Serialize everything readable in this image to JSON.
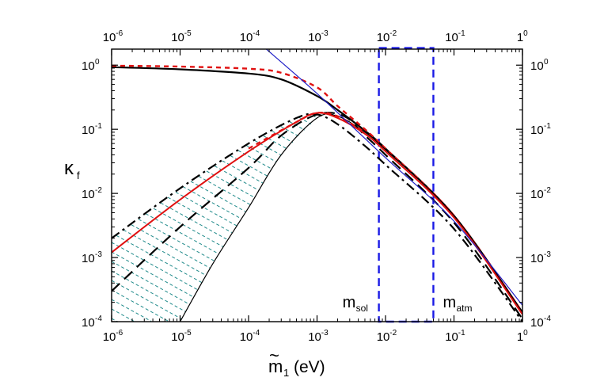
{
  "chart_data": {
    "type": "line",
    "title": "",
    "xlabel": {
      "symbol": "m",
      "tilde": "~",
      "sub": "1",
      "unit": "(eV)"
    },
    "ylabel": {
      "symbol": "κ",
      "sub": "f"
    },
    "xscale": "log",
    "yscale": "log",
    "xlim": [
      1e-06,
      1
    ],
    "ylim": [
      0.0001,
      2
    ],
    "x_ticks": [
      {
        "value": 1e-06,
        "base": "10",
        "exp": "-6"
      },
      {
        "value": 1e-05,
        "base": "10",
        "exp": "-5"
      },
      {
        "value": 0.0001,
        "base": "10",
        "exp": "-4"
      },
      {
        "value": 0.001,
        "base": "10",
        "exp": "-3"
      },
      {
        "value": 0.01,
        "base": "10",
        "exp": "-2"
      },
      {
        "value": 0.1,
        "base": "10",
        "exp": "-1"
      },
      {
        "value": 1,
        "base": "1",
        "exp": "0"
      }
    ],
    "y_ticks": [
      {
        "value": 0.0001,
        "base": "10",
        "exp": "-4"
      },
      {
        "value": 0.001,
        "base": "10",
        "exp": "-3"
      },
      {
        "value": 0.01,
        "base": "10",
        "exp": "-2"
      },
      {
        "value": 0.1,
        "base": "10",
        "exp": "-1"
      },
      {
        "value": 1,
        "base": "10",
        "exp": "0"
      }
    ],
    "band_label": "m_sol … m_atm",
    "band": {
      "x_range": [
        0.008,
        0.05
      ],
      "y_range": [
        0.0001,
        1.85
      ],
      "color": "#1a1ae6",
      "labels": [
        {
          "symbol": "m",
          "sub": "sol",
          "x": 0.008,
          "side": "left"
        },
        {
          "symbol": "m",
          "sub": "atm",
          "x": 0.05,
          "side": "right"
        }
      ]
    },
    "series": [
      {
        "style": "solid-thick",
        "color": "#000000",
        "width": 2.2,
        "dash": "",
        "points": [
          [
            1e-06,
            0.93
          ],
          [
            1e-05,
            0.86
          ],
          [
            0.0001,
            0.74
          ],
          [
            0.0003,
            0.6
          ],
          [
            0.001,
            0.33
          ],
          [
            0.002,
            0.2
          ],
          [
            0.005,
            0.095
          ],
          [
            0.01,
            0.05
          ],
          [
            0.1,
            0.0045
          ],
          [
            1,
            0.00014
          ]
        ]
      },
      {
        "style": "dashed",
        "color": "#e01010",
        "width": 2.4,
        "dash": "6,5",
        "points": [
          [
            1e-06,
            0.98
          ],
          [
            1e-05,
            0.95
          ],
          [
            0.0001,
            0.88
          ],
          [
            0.0003,
            0.76
          ],
          [
            0.001,
            0.45
          ],
          [
            0.002,
            0.23
          ],
          [
            0.005,
            0.1
          ],
          [
            0.01,
            0.05
          ],
          [
            0.1,
            0.0045
          ],
          [
            1,
            0.00014
          ]
        ]
      },
      {
        "style": "solid-thin",
        "color": "#000000",
        "width": 1.2,
        "dash": "",
        "points": [
          [
            1e-05,
            0.0001
          ],
          [
            3e-05,
            0.0008
          ],
          [
            0.0001,
            0.006
          ],
          [
            0.0003,
            0.04
          ],
          [
            0.001,
            0.15
          ],
          [
            0.002,
            0.16
          ],
          [
            0.005,
            0.09
          ],
          [
            0.01,
            0.048
          ],
          [
            0.1,
            0.0045
          ],
          [
            1,
            0.00014
          ]
        ]
      },
      {
        "style": "long-dash",
        "color": "#000000",
        "width": 2.2,
        "dash": "14,8",
        "points": [
          [
            1e-06,
            0.0003
          ],
          [
            1e-05,
            0.003
          ],
          [
            0.0001,
            0.025
          ],
          [
            0.0003,
            0.08
          ],
          [
            0.001,
            0.17
          ],
          [
            0.0025,
            0.16
          ],
          [
            0.005,
            0.08
          ],
          [
            0.01,
            0.04
          ],
          [
            0.1,
            0.0035
          ],
          [
            1,
            0.00011
          ]
        ]
      },
      {
        "style": "dash-dot",
        "color": "#000000",
        "width": 2.2,
        "dash": "12,5,3,5",
        "points": [
          [
            1e-06,
            0.002
          ],
          [
            1e-05,
            0.012
          ],
          [
            0.0001,
            0.06
          ],
          [
            0.0005,
            0.15
          ],
          [
            0.001,
            0.17
          ],
          [
            0.002,
            0.12
          ],
          [
            0.005,
            0.055
          ],
          [
            0.01,
            0.028
          ],
          [
            0.1,
            0.0028
          ],
          [
            1,
            0.0001
          ]
        ]
      },
      {
        "style": "solid-red",
        "color": "#e01010",
        "width": 2.0,
        "dash": "",
        "points": [
          [
            1e-06,
            0.0012
          ],
          [
            1e-05,
            0.008
          ],
          [
            0.0001,
            0.045
          ],
          [
            0.0005,
            0.13
          ],
          [
            0.001,
            0.18
          ],
          [
            0.002,
            0.15
          ],
          [
            0.005,
            0.085
          ],
          [
            0.01,
            0.045
          ],
          [
            0.1,
            0.0042
          ],
          [
            1,
            0.00013
          ]
        ]
      },
      {
        "style": "red-dashed-low",
        "color": "#e01010",
        "width": 2.2,
        "dash": "6,5",
        "points": [
          [
            0.0001,
            0.05
          ],
          [
            0.0005,
            0.13
          ],
          [
            0.001,
            0.18
          ],
          [
            0.002,
            0.16
          ],
          [
            0.005,
            0.09
          ]
        ]
      },
      {
        "style": "blue-thin",
        "color": "#2020c8",
        "width": 1.2,
        "dash": "",
        "points": [
          [
            0.00016,
            2.0
          ],
          [
            0.001,
            0.36
          ],
          [
            0.01,
            0.036
          ],
          [
            0.1,
            0.0037
          ],
          [
            1,
            0.00018
          ]
        ]
      }
    ]
  }
}
